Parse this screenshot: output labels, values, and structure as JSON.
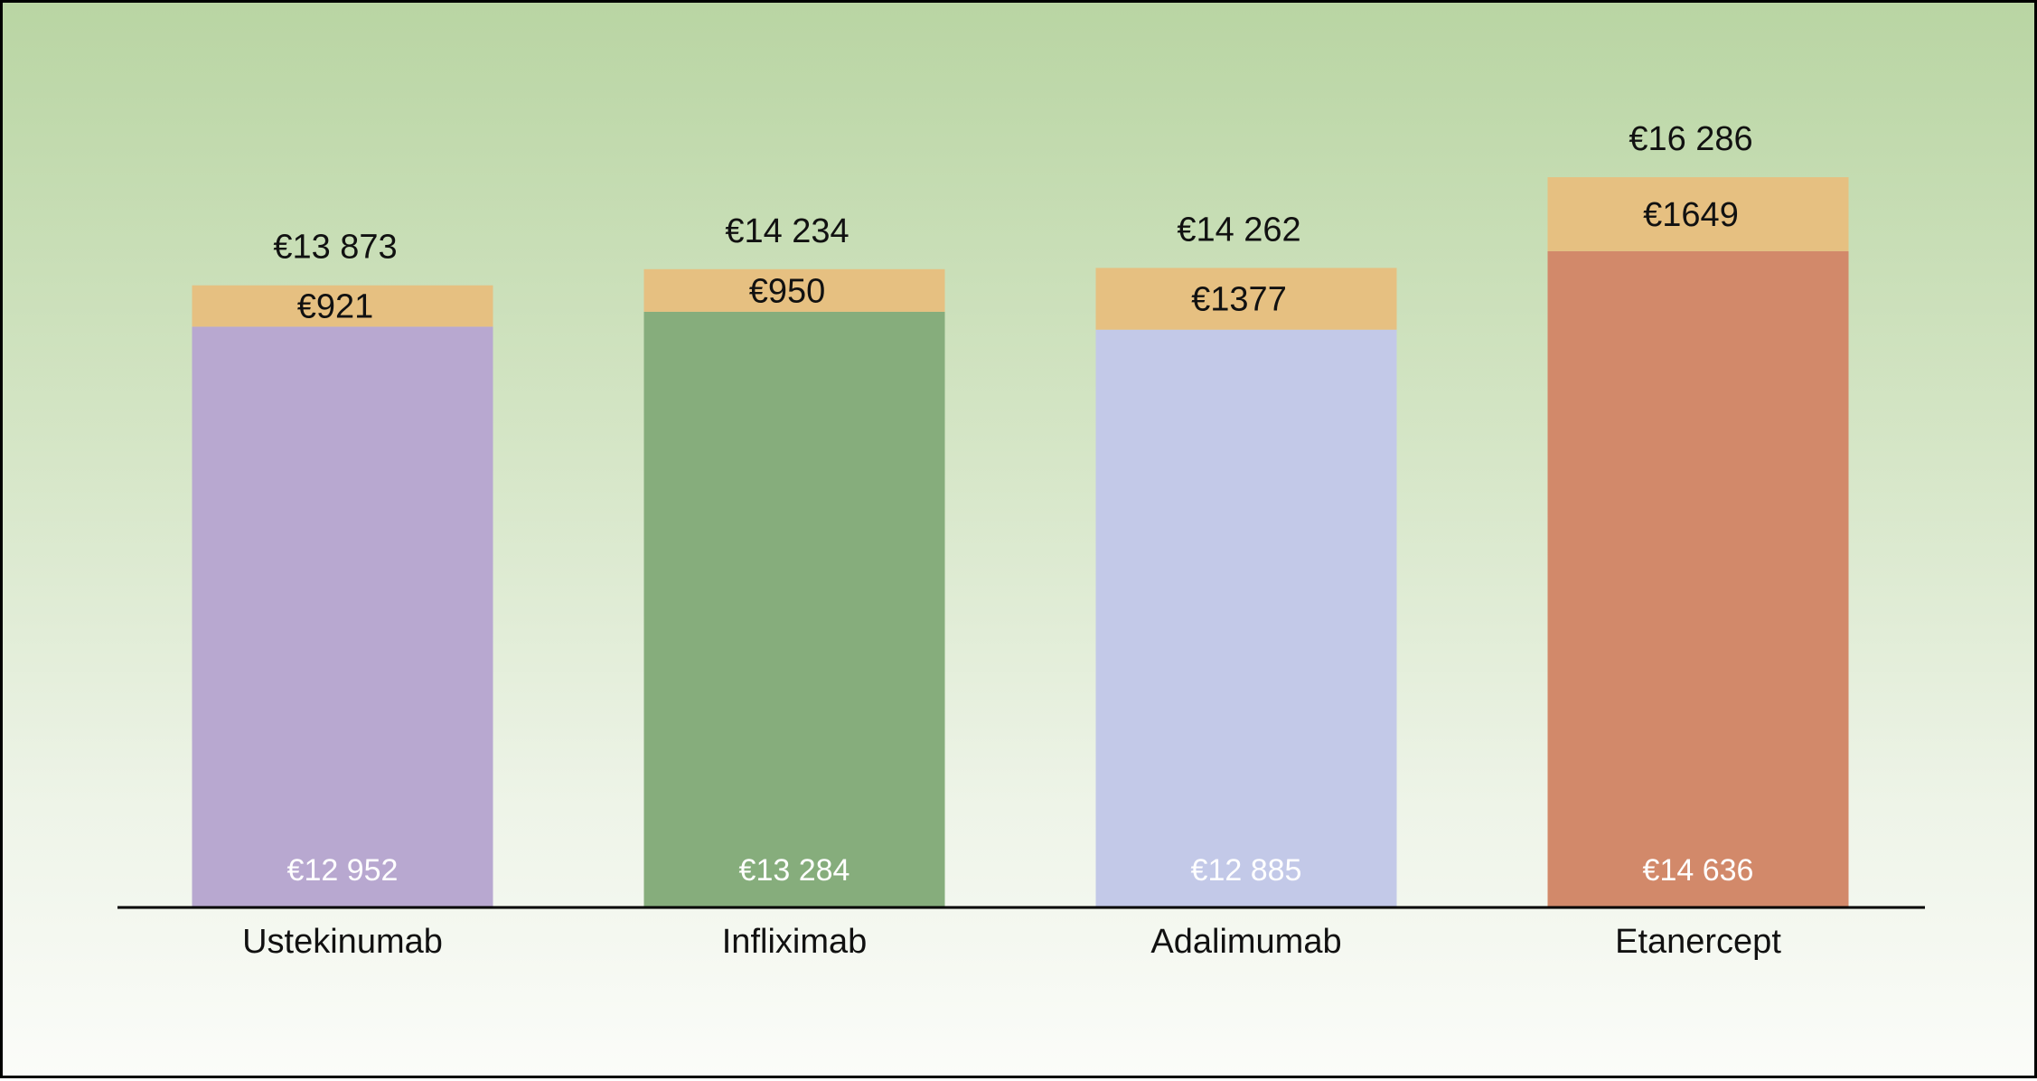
{
  "chart_data": {
    "type": "bar",
    "stacked": true,
    "categories": [
      "Ustekinumab",
      "Infliximab",
      "Adalimumab",
      "Etanercept"
    ],
    "series": [
      {
        "values": [
          12952,
          13284,
          12885,
          14636
        ],
        "labels": [
          "€12 952",
          "€13 284",
          "€12 885",
          "€14 636"
        ]
      },
      {
        "values": [
          921,
          950,
          1377,
          1649
        ],
        "labels": [
          "€921",
          "€950",
          "€1377",
          "€1649"
        ],
        "color": "#e6c081"
      }
    ],
    "totals": [
      13873,
      14234,
      14262,
      16286
    ],
    "total_labels": [
      "€13 873",
      "€14 234",
      "€14 262",
      "€16 286"
    ],
    "base_colors": [
      "#b8a8d0",
      "#86ad7c",
      "#c3c9e8",
      "#d2896a"
    ],
    "title": "",
    "xlabel": "",
    "ylabel": "",
    "ylim": [
      0,
      16286
    ],
    "grid": false,
    "legend": "none"
  }
}
